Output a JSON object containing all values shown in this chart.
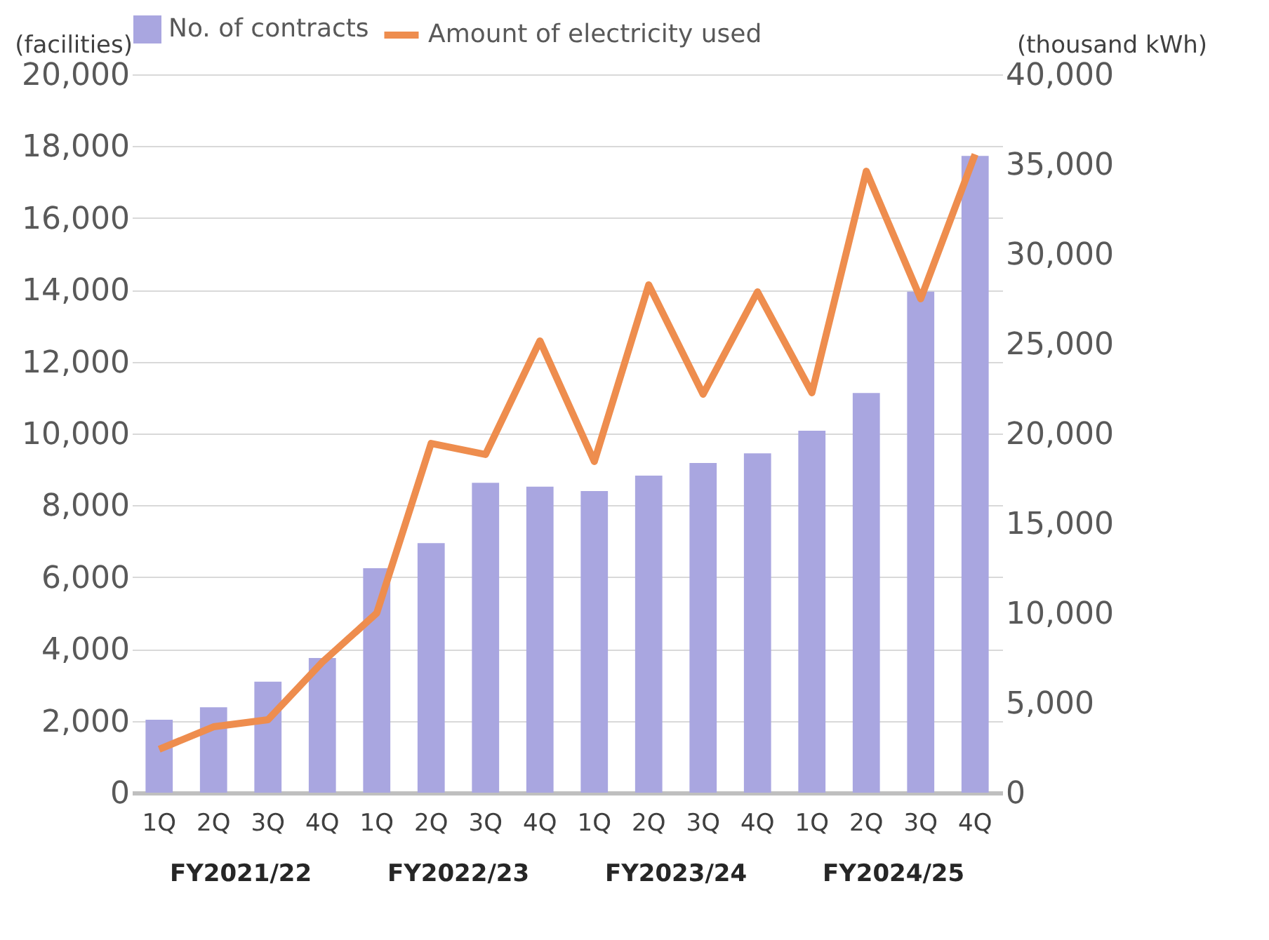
{
  "chart_data": {
    "type": "bar",
    "categories": [
      "1Q",
      "2Q",
      "3Q",
      "4Q",
      "1Q",
      "2Q",
      "3Q",
      "4Q",
      "1Q",
      "2Q",
      "3Q",
      "4Q",
      "1Q",
      "2Q",
      "3Q",
      "4Q"
    ],
    "ylabel": "(facilities)",
    "y2label": "(thousand kWh)",
    "ylim": [
      0,
      20000
    ],
    "yticks": [
      0,
      {
        "value": 2000,
        "label": "2,000"
      },
      {
        "value": 4000,
        "label": "4,000"
      },
      {
        "value": 6000,
        "label": "6,000"
      },
      {
        "value": 8000,
        "label": "8,000"
      },
      {
        "value": 10000,
        "label": "10,000"
      },
      {
        "value": 12000,
        "label": "12,000"
      },
      {
        "value": 14000,
        "label": "14,000"
      },
      {
        "value": 16000,
        "label": "16,000"
      },
      {
        "value": 18000,
        "label": "18,000"
      },
      {
        "value": 20000,
        "label": "20,000"
      }
    ],
    "y2lim": [
      0,
      40000
    ],
    "y2ticks": [
      0,
      {
        "value": 5000,
        "label": "5,000"
      },
      {
        "value": 10000,
        "label": "10,000"
      },
      {
        "value": 15000,
        "label": "15,000"
      },
      {
        "value": 20000,
        "label": "20,000"
      },
      {
        "value": 25000,
        "label": "25,000"
      },
      {
        "value": 30000,
        "label": "30,000"
      },
      {
        "value": 35000,
        "label": "35,000"
      },
      {
        "value": 40000,
        "label": "40,000"
      }
    ],
    "grid": "y",
    "legend": "top",
    "annotations": [
      "FY2021/22",
      "FY2022/23",
      "FY2023/24",
      "FY2024/25"
    ],
    "series": [
      {
        "name": "No. of contracts",
        "color": "#a9a6e0",
        "values": [
          2030,
          2380,
          3090,
          3750,
          6250,
          6950,
          8630,
          8520,
          8400,
          8830,
          9180,
          9450,
          10080,
          11130,
          13950,
          17730
        ]
      },
      {
        "name": "Amount of electricity used",
        "type": "line",
        "axis": "y2",
        "color": "#ee8d4e",
        "values": [
          2420,
          3670,
          4060,
          7270,
          10000,
          19450,
          18830,
          25160,
          18440,
          28280,
          22190,
          27890,
          22270,
          34610,
          27500,
          35550
        ]
      }
    ]
  }
}
